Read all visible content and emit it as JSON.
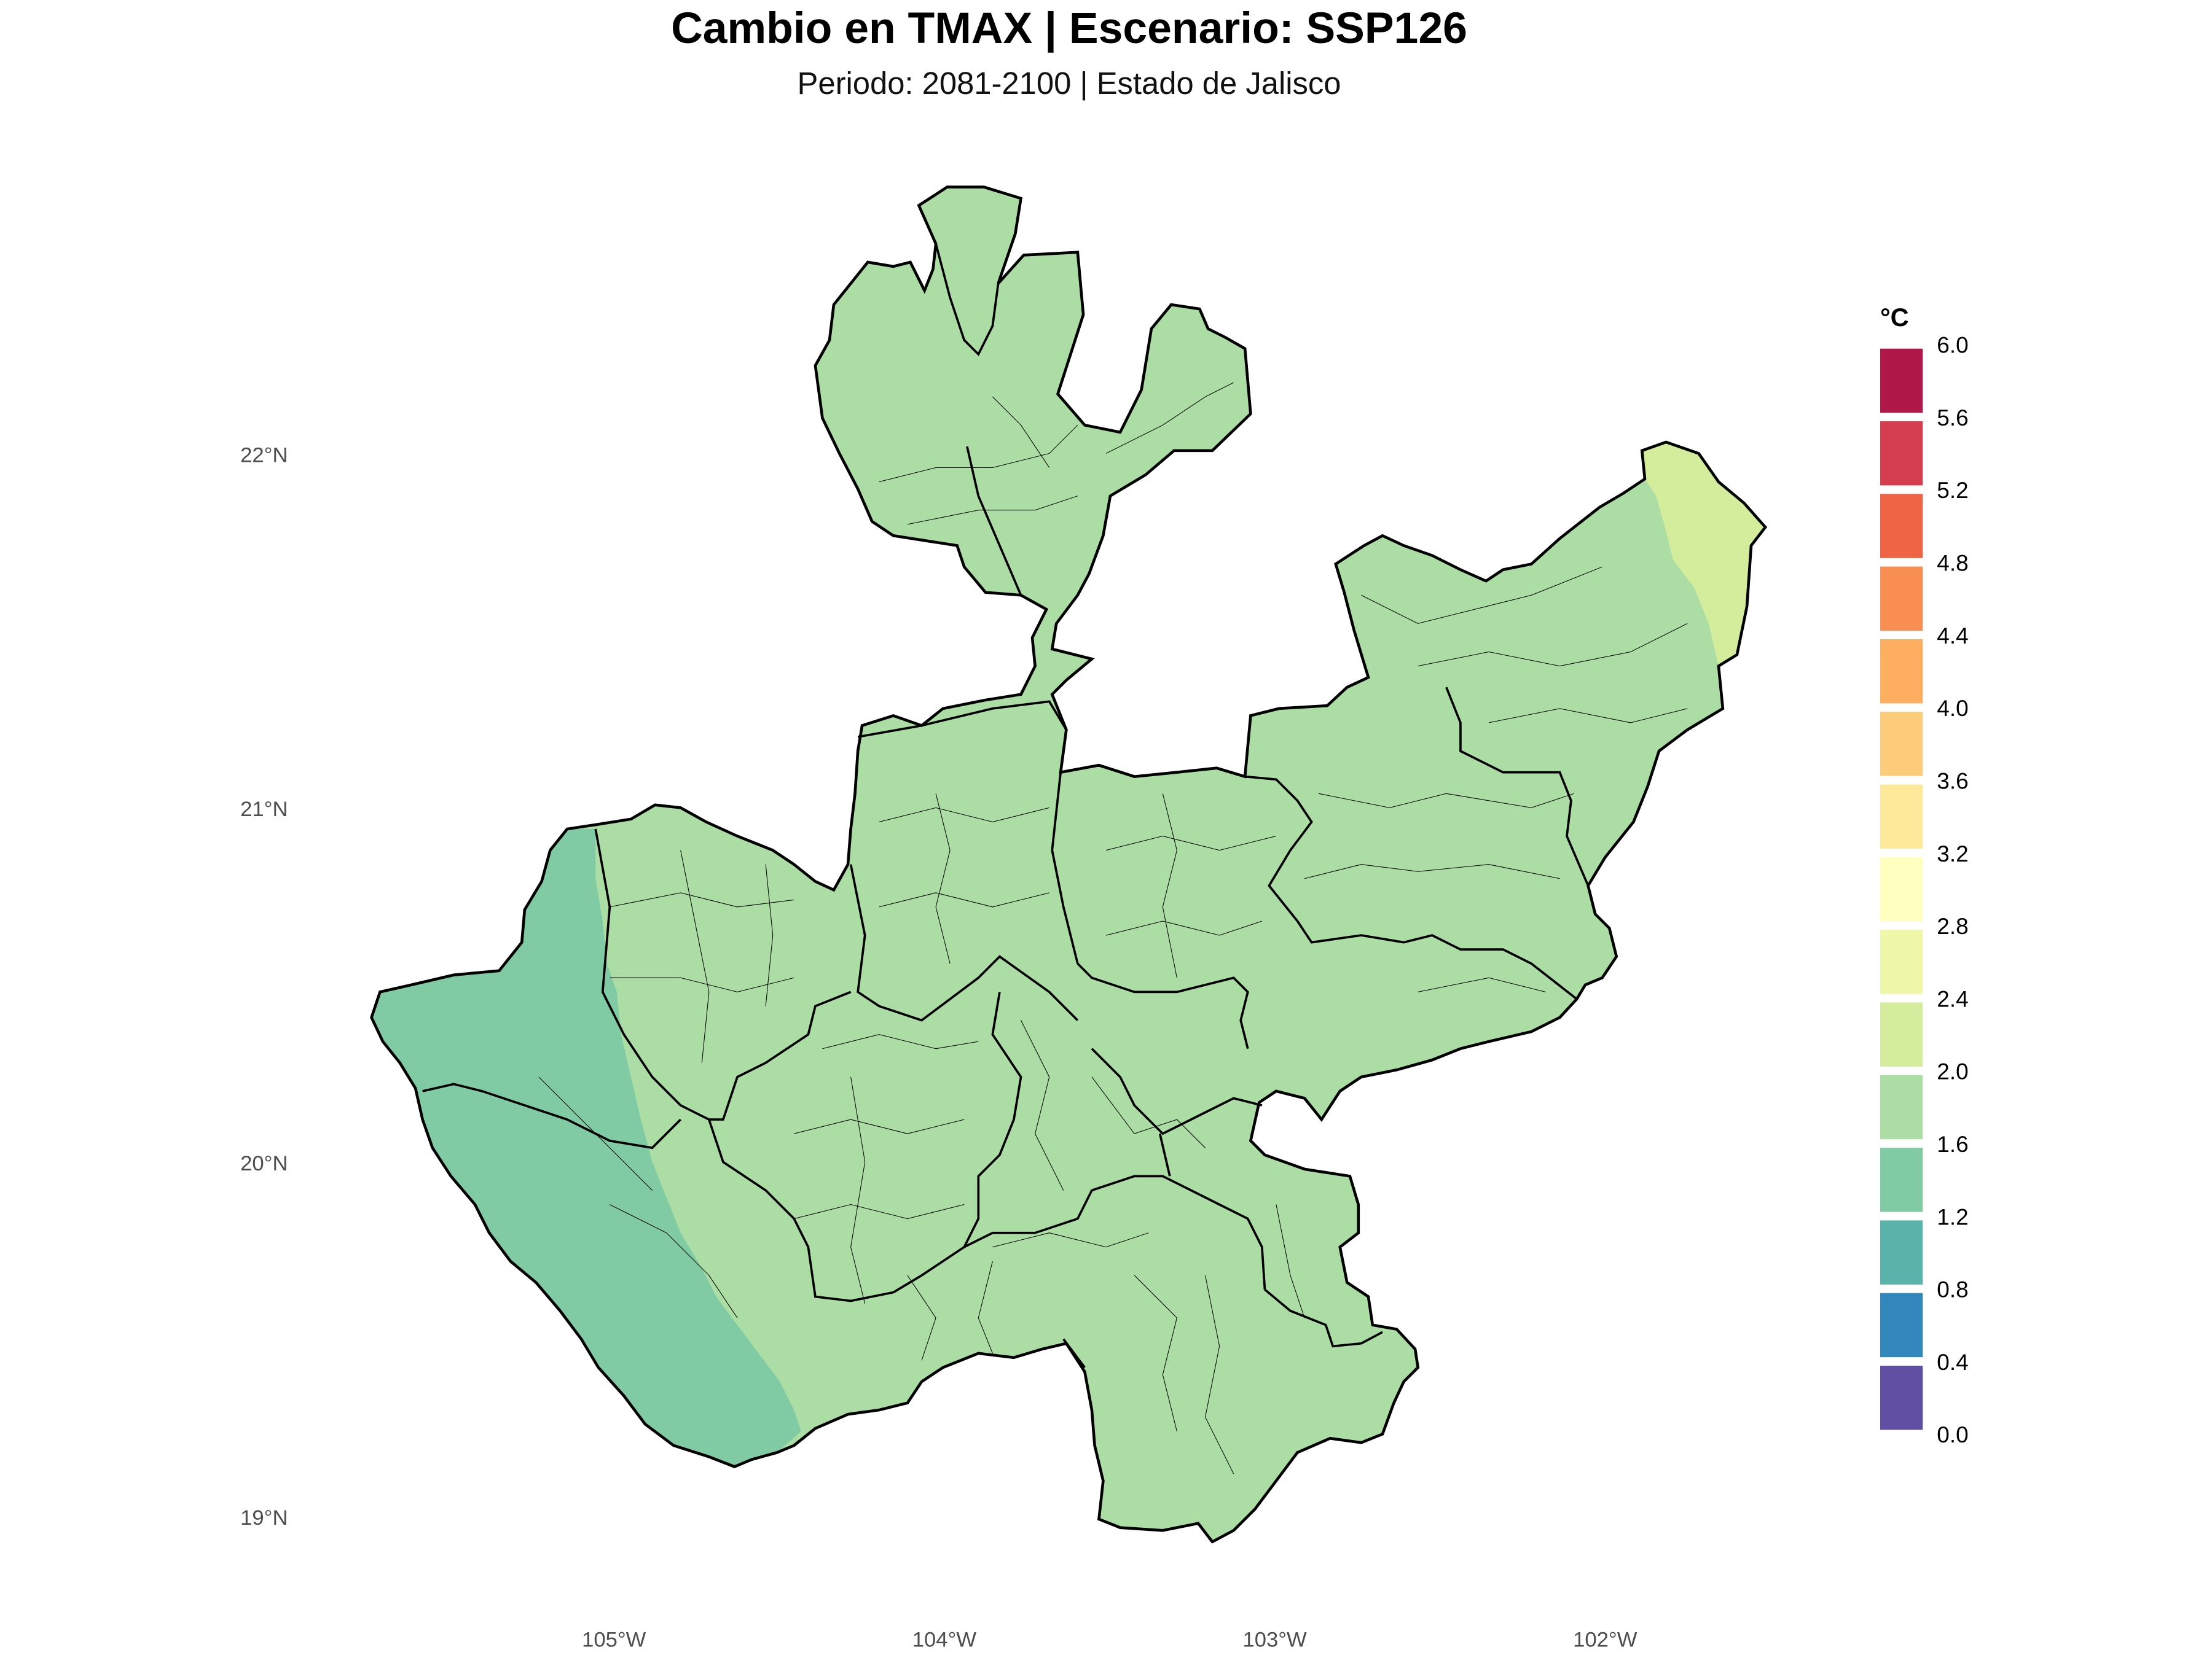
{
  "title": "Cambio en TMAX | Escenario: SSP126",
  "subtitle": "Periodo: 2081-2100 | Estado de Jalisco",
  "axes": {
    "lat_labels": [
      "22°N",
      "21°N",
      "20°N",
      "19°N"
    ],
    "lat_values": [
      22,
      21,
      20,
      19
    ],
    "lon_labels": [
      "105°W",
      "104°W",
      "103°W",
      "102°W"
    ],
    "lon_values": [
      -105,
      -104,
      -103,
      -102
    ]
  },
  "legend": {
    "title": "°C",
    "breaks": [
      "0.0",
      "0.4",
      "0.8",
      "1.2",
      "1.6",
      "2.0",
      "2.4",
      "2.8",
      "3.2",
      "3.6",
      "4.0",
      "4.4",
      "4.8",
      "5.2",
      "5.6",
      "6.0"
    ],
    "colors": [
      "#5e4fa2",
      "#3288bd",
      "#5ab4ac",
      "#80cba4",
      "#abdda4",
      "#d4ed9c",
      "#eef8a8",
      "#ffffbf",
      "#fee89a",
      "#fdcc7a",
      "#fdae61",
      "#f98e52",
      "#ee6445",
      "#d53e4f",
      "#b0184a"
    ]
  },
  "map_colors": {
    "main_fill": "#abdda4",
    "coast_fill": "#80cba4",
    "northeast_fill": "#d4ed9c",
    "outline": "#000000"
  }
}
